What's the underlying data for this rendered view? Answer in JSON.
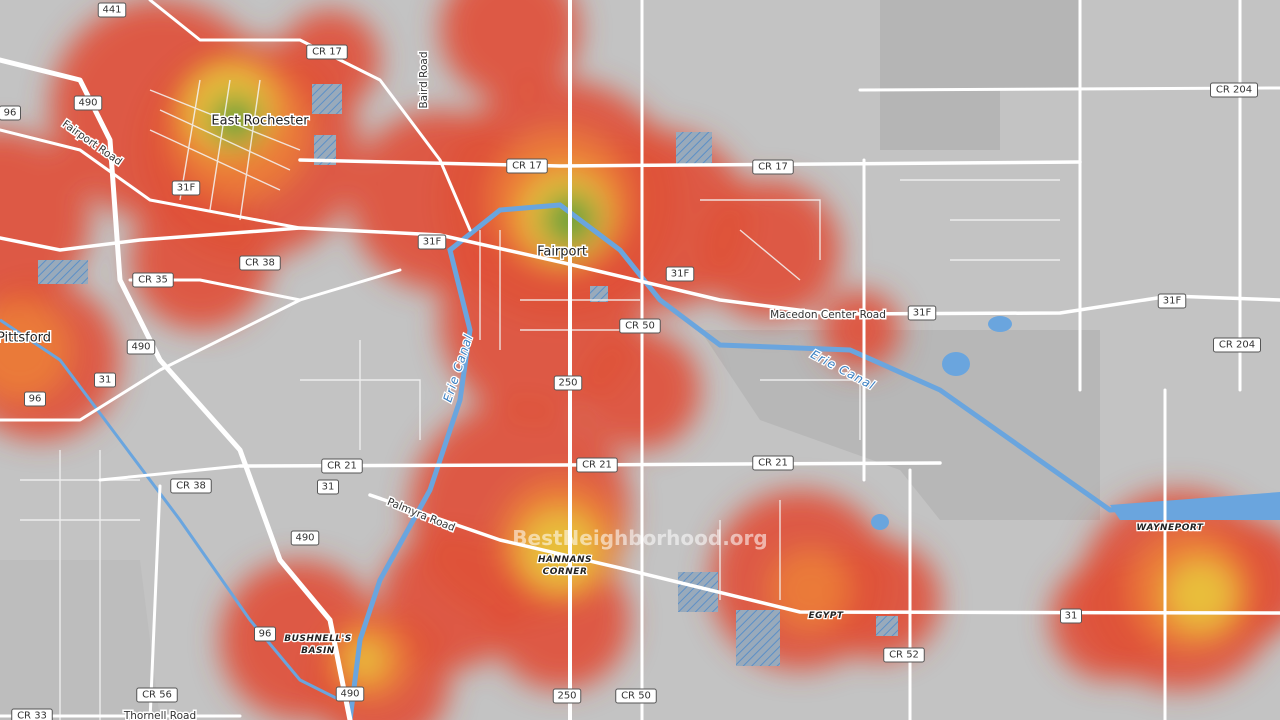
{
  "places": [
    {
      "label": "East Rochester"
    },
    {
      "label": "Fairport"
    },
    {
      "label": "Pittsford"
    },
    {
      "lines": [
        "HANNANS",
        "CORNER"
      ]
    },
    {
      "label": "EGYPT"
    },
    {
      "label": "WAYNEPORT"
    },
    {
      "lines": [
        "BUSHNELL'S",
        "BASIN"
      ]
    }
  ],
  "road_names": [
    "Fairport Road",
    "Baird Road",
    "Macedon Center Road",
    "Palmyra Road",
    "Thornell Road"
  ],
  "waterways": [
    "Erie Canal",
    "Erie Canal"
  ],
  "shields": [
    "441",
    "CR 17",
    "490",
    "96",
    "31F",
    "CR 17",
    "CR 17",
    "CR 204",
    "31F",
    "31F",
    "CR 38",
    "CR 35",
    "CR 50",
    "31F",
    "31F",
    "CR 204",
    "490",
    "31",
    "96",
    "250",
    "CR 21",
    "CR 21",
    "CR 21",
    "CR 38",
    "31",
    "490",
    "96",
    "31",
    "CR 52",
    "490",
    "250",
    "CR 50",
    "CR 56",
    "CR 33"
  ],
  "watermark": "BestNeighborhood.org"
}
